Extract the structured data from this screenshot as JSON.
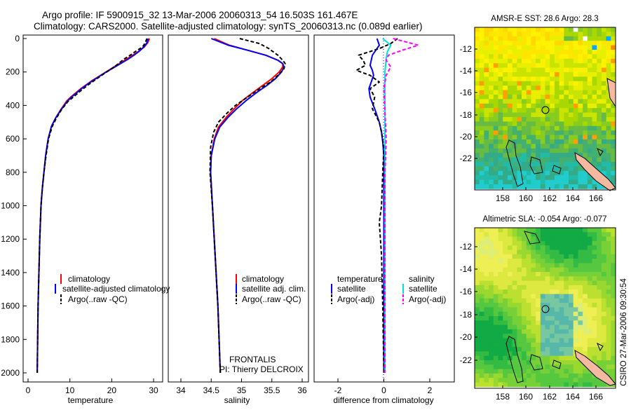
{
  "header": {
    "line1": "Argo profile: IF 5900915_32 13-Mar-2006 20060313_54 16.503S 161.467E",
    "line2": "Climatology: CARS2000. Satellite-adjusted climatology: synTS_20060313.nc (0.089d earlier)"
  },
  "colors": {
    "climatology": "#ff0000",
    "satellite": "#0000ff",
    "argo": "#000000",
    "salinity_satellite": "#00e0e0",
    "salinity_argo": "#ff00ff",
    "land": "#f4b9a0"
  },
  "panels": {
    "temperature": {
      "xlabel": "temperature",
      "xticks": [
        "0",
        "10",
        "20",
        "30"
      ],
      "legend": [
        "climatology",
        "satellite-adjusted climatology",
        "Argo(..raw -QC)"
      ]
    },
    "salinity": {
      "xlabel": "salinity",
      "xticks": [
        "34",
        "34.5",
        "35",
        "35.5",
        "36"
      ],
      "legend": [
        "climatology",
        "satellite adj. clim.",
        "Argo(..raw -QC)"
      ],
      "note1": "FRONTALIS",
      "note2": "PI: Thierry DELCROIX"
    },
    "difference": {
      "xlabel": "difference from climatology",
      "xticks": [
        "-2",
        "0",
        "2"
      ],
      "legend_head_temp": "temperature",
      "legend_head_sal": "salinity",
      "legend_temp": [
        "satellite",
        "Argo(-adj)"
      ],
      "legend_sal": [
        "satellite",
        "Argo(-adj)"
      ]
    },
    "depth_ticks": [
      "0",
      "200",
      "400",
      "600",
      "800",
      "1000",
      "1200",
      "1400",
      "1600",
      "1800",
      "2000"
    ]
  },
  "maps": {
    "sst_title": "AMSR-E SST: 28.6 Argo: 28.3",
    "sla_title": "Altimetric SLA: -0.054 Argo: -0.077",
    "lat_ticks": [
      "-12",
      "-14",
      "-16",
      "-18",
      "-20",
      "-22"
    ],
    "lon_ticks": [
      "158",
      "160",
      "162",
      "164",
      "166"
    ]
  },
  "footer": {
    "stamp": "CSIRO 27-Mar-2006 09:30:54"
  },
  "chart_data": [
    {
      "type": "line",
      "xlabel": "temperature",
      "ylabel": "",
      "xlim": [
        -2,
        32
      ],
      "ylim": [
        2050,
        0
      ],
      "series": [
        {
          "name": "climatology",
          "x": [
            29,
            28.6,
            27.8,
            26.5,
            25,
            23.4,
            21.8,
            20.2,
            18.6,
            17,
            15.4,
            14,
            12.6,
            11.4,
            10.2,
            9.2,
            7.8,
            6.6,
            5.6,
            4.8,
            4.2,
            3.8,
            3.4,
            3.1,
            2.8,
            2.6,
            2.4,
            2.3,
            2.2
          ],
          "y": [
            0,
            25,
            50,
            75,
            100,
            125,
            150,
            175,
            200,
            225,
            250,
            275,
            300,
            325,
            350,
            375,
            425,
            475,
            525,
            600,
            700,
            800,
            900,
            1000,
            1200,
            1400,
            1600,
            1800,
            2000
          ]
        },
        {
          "name": "satellite-adjusted climatology",
          "x": [
            28.7,
            28.4,
            27.7,
            26.6,
            25.3,
            23.8,
            22.1,
            20.4,
            18.7,
            17.1,
            15.6,
            14.1,
            12.8,
            11.6,
            10.4,
            9.4,
            7.9,
            6.6,
            5.6,
            4.8,
            4.2,
            3.8,
            3.4,
            3.1,
            2.8,
            2.6,
            2.4,
            2.3,
            2.2
          ],
          "y": [
            0,
            25,
            50,
            75,
            100,
            125,
            150,
            175,
            200,
            225,
            250,
            275,
            300,
            325,
            350,
            375,
            425,
            475,
            525,
            600,
            700,
            800,
            900,
            1000,
            1200,
            1400,
            1600,
            1800,
            2000
          ]
        },
        {
          "name": "Argo(..raw -QC)",
          "x": [
            28.4,
            28,
            27.4,
            25.8,
            24.4,
            22.8,
            21.6,
            20.3,
            18.8,
            17.3,
            15.9,
            14.5,
            13.2,
            12,
            10.8,
            9.6,
            8,
            6.8,
            5.8,
            4.9,
            4.3,
            3.8,
            3.4,
            3.1,
            2.8,
            2.6,
            2.4,
            2.3,
            2.2
          ],
          "y": [
            0,
            25,
            50,
            75,
            100,
            125,
            150,
            175,
            200,
            225,
            250,
            275,
            300,
            325,
            350,
            375,
            425,
            475,
            525,
            600,
            700,
            800,
            900,
            1000,
            1200,
            1400,
            1600,
            1800,
            2000
          ]
        }
      ]
    },
    {
      "type": "line",
      "xlabel": "salinity",
      "ylabel": "",
      "xlim": [
        33.8,
        36.1
      ],
      "ylim": [
        2050,
        0
      ],
      "series": [
        {
          "name": "climatology",
          "x": [
            34.55,
            34.8,
            35.1,
            35.4,
            35.6,
            35.68,
            35.68,
            35.62,
            35.5,
            35.35,
            35.2,
            35.02,
            34.88,
            34.75,
            34.62,
            34.55,
            34.5,
            34.49,
            34.52,
            34.55,
            34.58,
            34.61,
            34.63,
            34.65
          ],
          "y": [
            0,
            40,
            70,
            100,
            130,
            150,
            170,
            200,
            240,
            280,
            320,
            370,
            420,
            470,
            530,
            600,
            700,
            800,
            1000,
            1200,
            1400,
            1600,
            1800,
            2000
          ]
        },
        {
          "name": "satellite adj. clim.",
          "x": [
            34.5,
            34.78,
            35.1,
            35.4,
            35.6,
            35.68,
            35.7,
            35.66,
            35.56,
            35.42,
            35.26,
            35.08,
            34.92,
            34.78,
            34.64,
            34.56,
            34.5,
            34.49,
            34.52,
            34.55,
            34.58,
            34.61,
            34.63,
            34.65
          ],
          "y": [
            0,
            40,
            70,
            100,
            130,
            150,
            170,
            200,
            240,
            280,
            320,
            370,
            420,
            470,
            530,
            600,
            700,
            800,
            1000,
            1200,
            1400,
            1600,
            1800,
            2000
          ]
        },
        {
          "name": "Argo(..raw -QC)",
          "x": [
            34.97,
            35.3,
            35.45,
            35.6,
            35.68,
            35.72,
            35.7,
            35.6,
            35.48,
            35.3,
            35.1,
            34.9,
            34.75,
            34.62,
            34.54,
            34.49,
            34.48,
            34.52,
            34.55,
            34.58,
            34.61,
            34.63,
            34.65
          ],
          "y": [
            0,
            30,
            60,
            100,
            130,
            150,
            180,
            220,
            260,
            300,
            350,
            400,
            450,
            500,
            560,
            650,
            800,
            1000,
            1200,
            1400,
            1600,
            1800,
            2000
          ]
        }
      ]
    },
    {
      "type": "line",
      "xlabel": "difference from climatology",
      "ylabel": "",
      "xlim": [
        -3,
        3
      ],
      "ylim": [
        2050,
        0
      ],
      "series": [
        {
          "name": "temperature satellite",
          "x": [
            -0.3,
            -0.2,
            -0.35,
            -0.5,
            -0.55,
            -0.6,
            -0.5,
            -0.45,
            -0.55,
            -0.65,
            -0.6,
            -0.4,
            -0.2,
            -0.1,
            -0.05,
            0,
            0,
            0,
            0,
            0,
            0
          ],
          "y": [
            0,
            40,
            70,
            100,
            130,
            160,
            190,
            220,
            260,
            300,
            350,
            420,
            500,
            560,
            620,
            700,
            800,
            1000,
            1400,
            1800,
            2000
          ]
        },
        {
          "name": "temperature Argo(-adj)",
          "x": [
            0.6,
            0.3,
            -0.2,
            -1.1,
            -0.9,
            -0.8,
            -1.2,
            -0.6,
            -0.2,
            -0.6,
            -0.4,
            -0.5,
            -0.2,
            -0.1,
            0,
            -0.05,
            -0.1,
            -0.2,
            -0.1,
            -0.05,
            0
          ],
          "y": [
            0,
            30,
            60,
            100,
            130,
            160,
            190,
            220,
            260,
            300,
            350,
            420,
            500,
            560,
            650,
            800,
            1000,
            1100,
            1300,
            1600,
            2000
          ]
        },
        {
          "name": "salinity satellite",
          "x": [
            -0.05,
            0.3,
            0.15,
            0.1,
            0.05,
            0.05,
            0.05,
            0.05,
            0.05,
            0.05,
            0.05
          ],
          "y": [
            0,
            40,
            80,
            120,
            200,
            300,
            400,
            600,
            1000,
            1500,
            2000
          ]
        },
        {
          "name": "salinity Argo(-adj)",
          "x": [
            0.4,
            1.5,
            0.8,
            0.2,
            0.1,
            0.3,
            0.1,
            0,
            0.1,
            0.05,
            0.05,
            0.05
          ],
          "y": [
            0,
            40,
            70,
            100,
            130,
            170,
            220,
            300,
            600,
            800,
            1200,
            2000
          ]
        }
      ]
    }
  ]
}
